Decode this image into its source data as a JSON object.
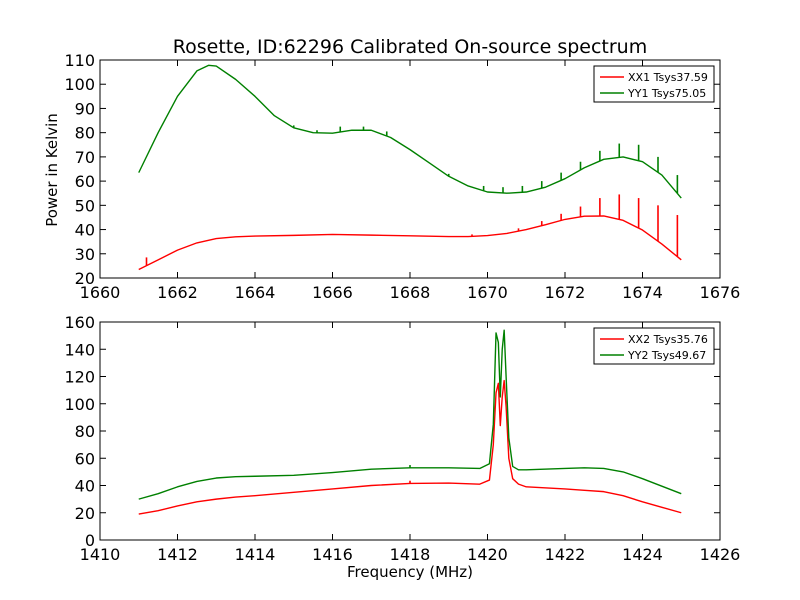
{
  "figure": {
    "title": "Rosette, ID:62296 Calibrated On-source spectrum",
    "xlabel": "Frequency (MHz)",
    "ylabel": "Power in Kelvin"
  },
  "chart_data": [
    {
      "type": "line",
      "title": "Rosette, ID:62296 Calibrated On-source spectrum",
      "xlabel": "",
      "ylabel": "Power in Kelvin",
      "xlim": [
        1660,
        1676
      ],
      "ylim": [
        20,
        110
      ],
      "xticks": [
        1660,
        1662,
        1664,
        1666,
        1668,
        1670,
        1672,
        1674,
        1676
      ],
      "yticks": [
        20,
        30,
        40,
        50,
        60,
        70,
        80,
        90,
        100,
        110
      ],
      "grid": false,
      "legend_position": "top-right",
      "series": [
        {
          "name": "XX1 Tsys37.59",
          "color": "#ff0000",
          "x": [
            1661.0,
            1661.5,
            1662.0,
            1662.5,
            1663.0,
            1663.5,
            1664.0,
            1665.0,
            1666.0,
            1667.0,
            1668.0,
            1669.0,
            1669.5,
            1670.0,
            1670.5,
            1671.0,
            1671.5,
            1672.0,
            1672.5,
            1673.0,
            1673.5,
            1674.0,
            1674.5,
            1675.0
          ],
          "values": [
            23.5,
            27.5,
            31.5,
            34.5,
            36.3,
            37.0,
            37.3,
            37.6,
            38.0,
            37.7,
            37.4,
            37.1,
            37.1,
            37.5,
            38.4,
            40.0,
            42.0,
            44.2,
            45.5,
            45.6,
            43.8,
            39.8,
            34.0,
            27.5
          ]
        },
        {
          "name": "YY1 Tsys75.05",
          "color": "#008000",
          "x": [
            1661.0,
            1661.5,
            1662.0,
            1662.5,
            1662.8,
            1663.0,
            1663.5,
            1664.0,
            1664.5,
            1665.0,
            1665.5,
            1666.0,
            1666.5,
            1667.0,
            1667.5,
            1668.0,
            1668.5,
            1669.0,
            1669.5,
            1670.0,
            1670.5,
            1671.0,
            1671.5,
            1672.0,
            1672.5,
            1673.0,
            1673.5,
            1674.0,
            1674.5,
            1675.0
          ],
          "values": [
            63.5,
            80.0,
            95.0,
            105.5,
            107.8,
            107.5,
            102.0,
            95.0,
            87.0,
            82.0,
            80.0,
            79.8,
            81.0,
            81.0,
            78.0,
            73.0,
            67.5,
            62.0,
            58.0,
            55.5,
            55.0,
            55.5,
            57.5,
            61.0,
            65.5,
            69.0,
            70.0,
            68.0,
            62.5,
            53.0
          ]
        }
      ],
      "spikes": [
        {
          "series": "XX1 Tsys37.59",
          "x": [
            1661.2,
            1661.8,
            1669.6,
            1670.8,
            1671.4,
            1671.9,
            1672.4,
            1672.9,
            1673.4,
            1673.9,
            1674.4,
            1674.9
          ],
          "top": [
            28.5,
            30.0,
            38.0,
            40.5,
            43.5,
            46.5,
            49.5,
            53.0,
            54.5,
            53.0,
            50.0,
            46.0
          ]
        },
        {
          "series": "YY1 Tsys75.05",
          "x": [
            1665.0,
            1665.6,
            1666.2,
            1666.8,
            1667.4,
            1669.0,
            1669.9,
            1670.4,
            1670.9,
            1671.4,
            1671.9,
            1672.4,
            1672.9,
            1673.4,
            1673.9,
            1674.4,
            1674.9
          ],
          "top": [
            83.0,
            81.0,
            82.5,
            82.5,
            80.5,
            63.0,
            58.0,
            57.5,
            58.0,
            60.0,
            63.5,
            68.0,
            72.5,
            75.5,
            75.0,
            70.0,
            62.5
          ]
        }
      ]
    },
    {
      "type": "line",
      "title": "",
      "xlabel": "Frequency (MHz)",
      "ylabel": "",
      "xlim": [
        1410,
        1426
      ],
      "ylim": [
        0,
        160
      ],
      "xticks": [
        1410,
        1412,
        1414,
        1416,
        1418,
        1420,
        1422,
        1424,
        1426
      ],
      "yticks": [
        0,
        20,
        40,
        60,
        80,
        100,
        120,
        140,
        160
      ],
      "grid": false,
      "legend_position": "top-right",
      "series": [
        {
          "name": "XX2 Tsys35.76",
          "color": "#ff0000",
          "x": [
            1411.0,
            1411.5,
            1412.0,
            1412.5,
            1413.0,
            1413.5,
            1414.0,
            1415.0,
            1416.0,
            1417.0,
            1418.0,
            1419.0,
            1419.8,
            1420.05,
            1420.15,
            1420.22,
            1420.28,
            1420.33,
            1420.38,
            1420.43,
            1420.48,
            1420.55,
            1420.65,
            1420.8,
            1421.0,
            1422.0,
            1422.5,
            1423.0,
            1423.5,
            1424.0,
            1424.5,
            1425.0
          ],
          "values": [
            19.0,
            21.5,
            25.0,
            28.0,
            30.0,
            31.5,
            32.5,
            35.0,
            37.5,
            40.0,
            41.5,
            41.8,
            41.0,
            44.0,
            70.0,
            108.0,
            115.0,
            84.0,
            105.0,
            117.0,
            98.0,
            60.0,
            45.0,
            41.0,
            39.0,
            37.5,
            36.5,
            35.5,
            32.5,
            28.0,
            24.0,
            20.0
          ]
        },
        {
          "name": "YY2 Tsys49.67",
          "color": "#008000",
          "x": [
            1411.0,
            1411.5,
            1412.0,
            1412.5,
            1413.0,
            1413.5,
            1414.0,
            1415.0,
            1416.0,
            1417.0,
            1418.0,
            1419.0,
            1419.8,
            1420.05,
            1420.15,
            1420.22,
            1420.28,
            1420.33,
            1420.38,
            1420.43,
            1420.48,
            1420.55,
            1420.65,
            1420.8,
            1421.0,
            1422.0,
            1422.5,
            1423.0,
            1423.5,
            1424.0,
            1424.5,
            1425.0
          ],
          "values": [
            30.0,
            34.0,
            39.0,
            43.0,
            45.5,
            46.5,
            46.8,
            47.5,
            49.5,
            52.0,
            53.0,
            53.0,
            52.5,
            56.0,
            85.0,
            152.0,
            145.0,
            105.0,
            140.0,
            154.0,
            120.0,
            75.0,
            54.0,
            51.5,
            51.5,
            52.5,
            53.0,
            52.5,
            50.0,
            45.0,
            39.5,
            34.0
          ]
        }
      ],
      "spikes": [
        {
          "series": "XX2 Tsys35.76",
          "x": [
            1418.0
          ],
          "top": [
            43.5
          ]
        },
        {
          "series": "YY2 Tsys49.67",
          "x": [
            1418.0
          ],
          "top": [
            55.0
          ]
        }
      ]
    }
  ]
}
